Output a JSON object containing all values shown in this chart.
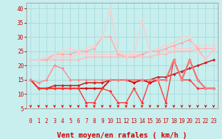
{
  "xlabel": "Vent moyen/en rafales ( km/h )",
  "background_color": "#c8eeee",
  "grid_color": "#aadddd",
  "x": [
    0,
    1,
    2,
    3,
    4,
    5,
    6,
    7,
    8,
    9,
    10,
    11,
    12,
    13,
    14,
    15,
    16,
    17,
    18,
    19,
    20,
    21,
    22,
    23
  ],
  "series": [
    {
      "y": [
        22,
        22,
        22,
        22,
        22,
        22,
        22,
        23,
        23,
        23,
        23,
        23,
        23,
        23,
        23,
        23,
        24,
        24,
        25,
        25,
        25,
        26,
        26,
        26
      ],
      "color": "#ffbbbb",
      "linewidth": 1.0,
      "marker": "D",
      "markersize": 2.0
    },
    {
      "y": [
        22,
        22,
        22,
        23,
        23,
        23,
        24,
        24,
        24,
        24,
        24,
        24,
        24,
        24,
        24,
        25,
        25,
        25,
        26,
        26,
        26,
        27,
        27,
        27
      ],
      "color": "#ffcccc",
      "linewidth": 1.0,
      "marker": "D",
      "markersize": 2.0
    },
    {
      "y": [
        22,
        22,
        22,
        24,
        24,
        24,
        25,
        25,
        26,
        30,
        30,
        24,
        23,
        23,
        24,
        25,
        25,
        26,
        27,
        28,
        29,
        26,
        22,
        26
      ],
      "color": "#ffaaaa",
      "linewidth": 1.0,
      "marker": "D",
      "markersize": 2.0
    },
    {
      "y": [
        22,
        22,
        23,
        24,
        25,
        26,
        25,
        26,
        27,
        30,
        40,
        25,
        23,
        24,
        36,
        25,
        26,
        27,
        28,
        30,
        30,
        25,
        22,
        26
      ],
      "color": "#ffcccc",
      "linewidth": 1.0,
      "marker": "D",
      "markersize": 2.0
    },
    {
      "y": [
        15,
        12,
        12,
        13,
        13,
        13,
        13,
        14,
        14,
        14,
        15,
        15,
        15,
        15,
        15,
        15,
        16,
        16,
        17,
        18,
        19,
        20,
        21,
        22
      ],
      "color": "#cc2222",
      "linewidth": 1.2,
      "marker": "D",
      "markersize": 2.0
    },
    {
      "y": [
        15,
        12,
        12,
        12,
        12,
        12,
        12,
        12,
        12,
        12,
        15,
        15,
        15,
        14,
        15,
        14,
        15,
        15,
        22,
        15,
        22,
        15,
        12,
        12
      ],
      "color": "#dd0000",
      "linewidth": 1.3,
      "marker": "D",
      "markersize": 2.0
    },
    {
      "y": [
        15,
        12,
        12,
        12,
        12,
        12,
        12,
        7,
        7,
        12,
        11,
        7,
        7,
        12,
        7,
        15,
        15,
        7,
        22,
        15,
        15,
        12,
        12,
        12
      ],
      "color": "#ff3333",
      "linewidth": 1.0,
      "marker": "D",
      "markersize": 2.0
    },
    {
      "y": [
        15,
        14,
        15,
        20,
        19,
        15,
        15,
        15,
        15,
        15,
        15,
        15,
        15,
        15,
        15,
        15,
        15,
        15,
        22,
        15,
        22,
        15,
        12,
        12
      ],
      "color": "#ff8888",
      "linewidth": 1.0,
      "marker": "D",
      "markersize": 2.0
    }
  ],
  "ylim": [
    5,
    42
  ],
  "yticks": [
    5,
    10,
    15,
    20,
    25,
    30,
    35,
    40
  ],
  "xticks": [
    0,
    1,
    2,
    3,
    4,
    5,
    6,
    7,
    8,
    9,
    10,
    11,
    12,
    13,
    14,
    15,
    16,
    17,
    18,
    19,
    20,
    21,
    22,
    23
  ],
  "arrow_color": "#cc0000",
  "tick_color": "#cc0000",
  "xlabel_color": "#cc0000",
  "tick_fontsize": 5.5,
  "xlabel_fontsize": 7.5
}
